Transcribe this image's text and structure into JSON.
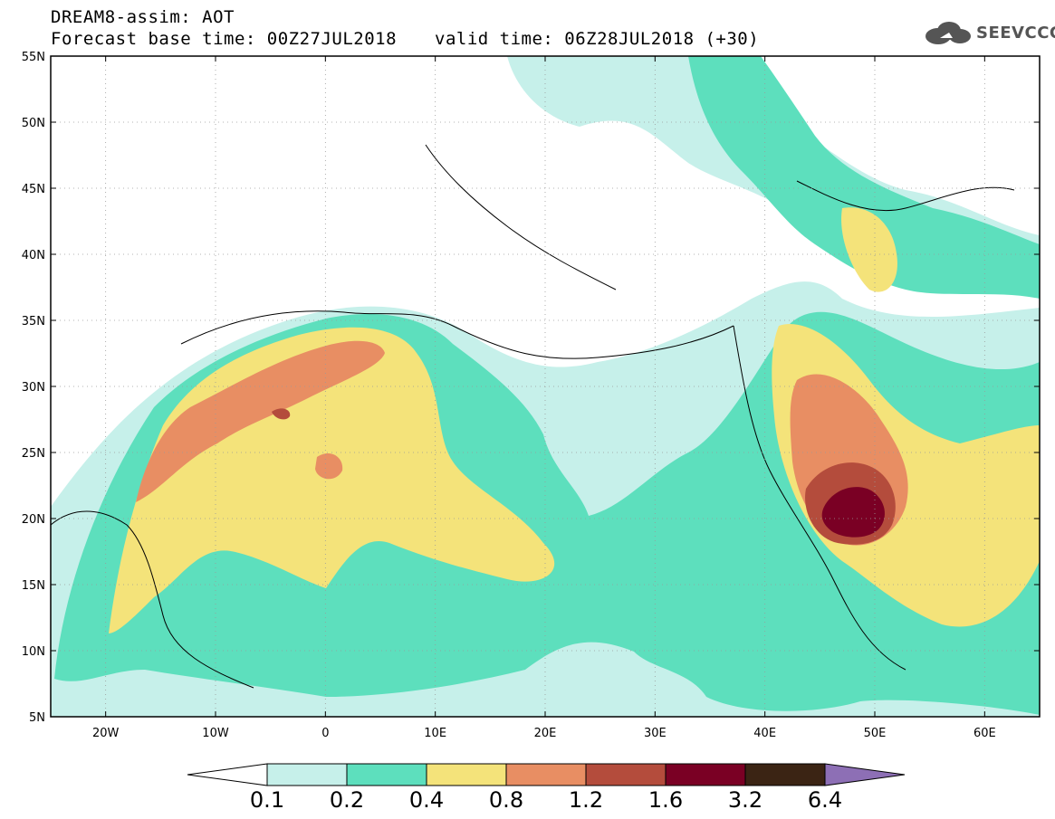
{
  "header": {
    "title": "DREAM8-assim: AOT",
    "base_time_label": "Forecast base time: 00Z27JUL2018",
    "valid_time_label": "valid time: 06Z28JUL2018 (+30)"
  },
  "logo": {
    "text": "SEEVCCC",
    "icon": "cloud-icon"
  },
  "map": {
    "lat_labels": [
      "55N",
      "50N",
      "45N",
      "40N",
      "35N",
      "30N",
      "25N",
      "20N",
      "15N",
      "10N",
      "5N"
    ],
    "lon_labels": [
      "20W",
      "10W",
      "0",
      "10E",
      "20E",
      "30E",
      "40E",
      "50E",
      "60E"
    ],
    "colors": {
      "c01": "#c6f0ea",
      "c02": "#5ddfbd",
      "c04": "#f4e37a",
      "c08": "#e88e63",
      "c12": "#b44c3c",
      "c16": "#7a0024",
      "c32": "#3b2414",
      "c64": "#8d6fb5"
    }
  },
  "colorbar": {
    "labels": [
      "0.1",
      "0.2",
      "0.4",
      "0.8",
      "1.2",
      "1.6",
      "3.2",
      "6.4"
    ]
  }
}
